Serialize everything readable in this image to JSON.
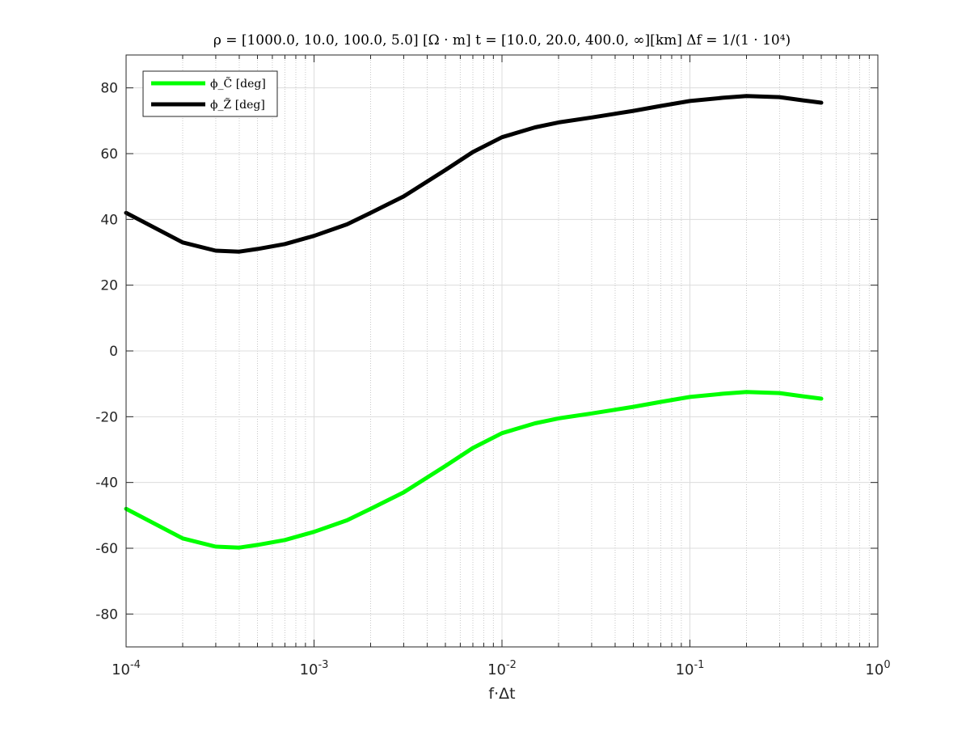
{
  "chart_data": {
    "type": "line",
    "title": "ρ = [1000.0, 10.0, 100.0, 5.0] [Ω · m]    t = [10.0, 20.0, 400.0, ∞][km]    Δf = 1/(1 · 10⁴)",
    "xlabel": "f·Δt",
    "ylabel": "",
    "xscale": "log",
    "xlim": [
      0.0001,
      1
    ],
    "ylim": [
      -90,
      90
    ],
    "x_ticks": [
      0.0001,
      0.001,
      0.01,
      0.1,
      1
    ],
    "x_tick_labels": [
      {
        "base": "10",
        "exp": "-4"
      },
      {
        "base": "10",
        "exp": "-3"
      },
      {
        "base": "10",
        "exp": "-2"
      },
      {
        "base": "10",
        "exp": "-1"
      },
      {
        "base": "10",
        "exp": "0"
      }
    ],
    "y_ticks": [
      -80,
      -60,
      -40,
      -20,
      0,
      20,
      40,
      60,
      80
    ],
    "y_tick_labels": [
      "-80",
      "-60",
      "-40",
      "-20",
      "0",
      "20",
      "40",
      "60",
      "80"
    ],
    "grid": true,
    "legend_position": "top-left",
    "series": [
      {
        "name": "ϕ_C̃   [deg]",
        "color": "#00ff00",
        "x": [
          0.0001,
          0.0002,
          0.0003,
          0.0004,
          0.0005,
          0.0007,
          0.001,
          0.0015,
          0.002,
          0.003,
          0.005,
          0.007,
          0.01,
          0.015,
          0.02,
          0.03,
          0.05,
          0.07,
          0.1,
          0.15,
          0.2,
          0.3,
          0.4,
          0.5
        ],
        "y": [
          -48,
          -57,
          -59.5,
          -59.8,
          -59,
          -57.5,
          -55,
          -51.5,
          -48,
          -43,
          -35,
          -29.5,
          -25,
          -22,
          -20.5,
          -19,
          -17,
          -15.5,
          -14,
          -13,
          -12.5,
          -12.8,
          -13.8,
          -14.5
        ]
      },
      {
        "name": "ϕ_Z̃   [deg]",
        "color": "#000000",
        "x": [
          0.0001,
          0.0002,
          0.0003,
          0.0004,
          0.0005,
          0.0007,
          0.001,
          0.0015,
          0.002,
          0.003,
          0.005,
          0.007,
          0.01,
          0.015,
          0.02,
          0.03,
          0.05,
          0.07,
          0.1,
          0.15,
          0.2,
          0.3,
          0.4,
          0.5
        ],
        "y": [
          42,
          33,
          30.5,
          30.2,
          31,
          32.5,
          35,
          38.5,
          42,
          47,
          55,
          60.5,
          65,
          68,
          69.5,
          71,
          73,
          74.5,
          76,
          77,
          77.5,
          77.2,
          76.2,
          75.5
        ]
      }
    ]
  }
}
